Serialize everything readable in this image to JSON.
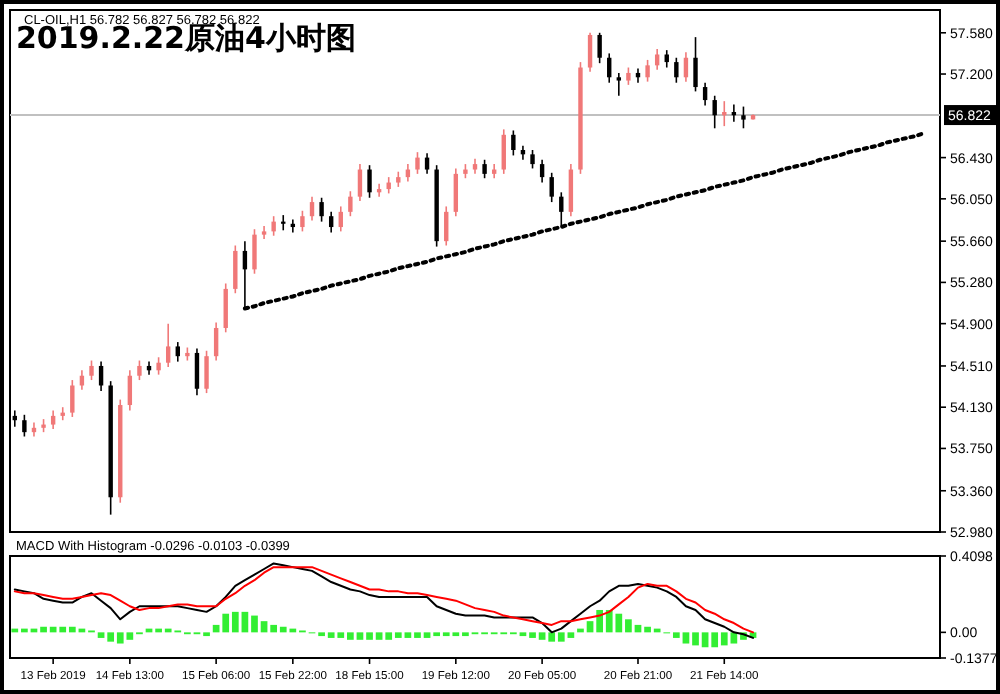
{
  "chart_data": [
    {
      "type": "candlestick",
      "title": "2019.2.22原油4小时图",
      "annotations": [
        "CL-OIL,H1 56.782 56.827 56.782 56.822"
      ],
      "tick_labels": "y",
      "ylim": [
        52.98,
        57.79
      ],
      "yticks": [
        {
          "value": 57.58,
          "label": "57.580"
        },
        {
          "value": 57.2,
          "label": "57.200"
        },
        {
          "value": 56.43,
          "label": "56.430"
        },
        {
          "value": 56.05,
          "label": "56.050"
        },
        {
          "value": 55.66,
          "label": "55.660"
        },
        {
          "value": 55.28,
          "label": "55.280"
        },
        {
          "value": 54.9,
          "label": "54.900"
        },
        {
          "value": 54.51,
          "label": "54.510"
        },
        {
          "value": 54.13,
          "label": "54.130"
        },
        {
          "value": 53.75,
          "label": "53.750"
        },
        {
          "value": 53.36,
          "label": "53.360"
        },
        {
          "value": 52.98,
          "label": "52.980"
        }
      ],
      "ref_lines": [
        {
          "axis": "y",
          "value": 56.822,
          "label": "56.822",
          "color": "#c0c0c0"
        }
      ],
      "categories": [
        null,
        null,
        null,
        null,
        null,
        null,
        null,
        null,
        null,
        null,
        null,
        null,
        null,
        null,
        null,
        null,
        null,
        null,
        null,
        null,
        null,
        null,
        null,
        null,
        null,
        null,
        null,
        null,
        null,
        null,
        null,
        null,
        null,
        null,
        null,
        null,
        null,
        null,
        null,
        null,
        null,
        null,
        null,
        null,
        null,
        null,
        null,
        null,
        null,
        null,
        null,
        null,
        null,
        null,
        null,
        null,
        null,
        null,
        null,
        null,
        null,
        null,
        null,
        null,
        null,
        null,
        null,
        null,
        null,
        null,
        null,
        null,
        null,
        null,
        null,
        null,
        null,
        null,
        null,
        null,
        null,
        null,
        null,
        null,
        null,
        null,
        null,
        null,
        null,
        null,
        null,
        null,
        null,
        null,
        null,
        null,
        null
      ],
      "ohlc": [
        [
          54.05,
          54.1,
          53.95,
          54.01
        ],
        [
          54.01,
          54.06,
          53.86,
          53.9
        ],
        [
          53.9,
          53.99,
          53.86,
          53.94
        ],
        [
          53.94,
          54.02,
          53.9,
          53.97
        ],
        [
          53.97,
          54.1,
          53.93,
          54.05
        ],
        [
          54.05,
          54.13,
          54.01,
          54.08
        ],
        [
          54.08,
          54.38,
          54.04,
          54.33
        ],
        [
          54.33,
          54.47,
          54.29,
          54.42
        ],
        [
          54.42,
          54.56,
          54.38,
          54.51
        ],
        [
          54.51,
          54.55,
          54.28,
          54.33
        ],
        [
          54.33,
          54.37,
          53.14,
          53.3
        ],
        [
          53.3,
          54.2,
          53.25,
          54.15
        ],
        [
          54.15,
          54.47,
          54.1,
          54.42
        ],
        [
          54.42,
          54.56,
          54.38,
          54.51
        ],
        [
          54.51,
          54.55,
          54.43,
          54.47
        ],
        [
          54.47,
          54.59,
          54.43,
          54.54
        ],
        [
          54.54,
          54.9,
          54.5,
          54.69
        ],
        [
          54.69,
          54.73,
          54.55,
          54.6
        ],
        [
          54.6,
          54.68,
          54.56,
          54.63
        ],
        [
          54.63,
          54.67,
          54.24,
          54.3
        ],
        [
          54.3,
          54.65,
          54.26,
          54.6
        ],
        [
          54.6,
          54.91,
          54.56,
          54.86
        ],
        [
          54.86,
          55.27,
          54.82,
          55.22
        ],
        [
          55.22,
          55.62,
          55.18,
          55.57
        ],
        [
          55.57,
          55.66,
          55.04,
          55.4
        ],
        [
          55.4,
          55.77,
          55.36,
          55.72
        ],
        [
          55.72,
          55.8,
          55.68,
          55.75
        ],
        [
          55.75,
          55.89,
          55.71,
          55.84
        ],
        [
          55.84,
          55.9,
          55.76,
          55.82
        ],
        [
          55.82,
          55.86,
          55.74,
          55.79
        ],
        [
          55.79,
          55.94,
          55.75,
          55.89
        ],
        [
          55.89,
          56.07,
          55.85,
          56.02
        ],
        [
          56.02,
          56.06,
          55.84,
          55.89
        ],
        [
          55.89,
          55.93,
          55.74,
          55.79
        ],
        [
          55.79,
          55.98,
          55.75,
          55.93
        ],
        [
          55.93,
          56.12,
          55.89,
          56.07
        ],
        [
          56.07,
          56.37,
          56.03,
          56.32
        ],
        [
          56.32,
          56.36,
          56.06,
          56.11
        ],
        [
          56.11,
          56.19,
          56.07,
          56.14
        ],
        [
          56.14,
          56.25,
          56.1,
          56.2
        ],
        [
          56.2,
          56.3,
          56.16,
          56.25
        ],
        [
          56.25,
          56.37,
          56.21,
          56.32
        ],
        [
          56.32,
          56.48,
          56.28,
          56.43
        ],
        [
          56.43,
          56.47,
          56.28,
          56.32
        ],
        [
          56.32,
          56.36,
          55.61,
          55.66
        ],
        [
          55.66,
          55.98,
          55.62,
          55.93
        ],
        [
          55.93,
          56.33,
          55.89,
          56.28
        ],
        [
          56.28,
          56.37,
          56.24,
          56.32
        ],
        [
          56.32,
          56.42,
          56.28,
          56.37
        ],
        [
          56.37,
          56.41,
          56.24,
          56.28
        ],
        [
          56.28,
          56.37,
          56.24,
          56.32
        ],
        [
          56.32,
          56.69,
          56.28,
          56.64
        ],
        [
          56.64,
          56.68,
          56.45,
          56.5
        ],
        [
          56.5,
          56.54,
          56.41,
          56.46
        ],
        [
          56.46,
          56.5,
          56.33,
          56.37
        ],
        [
          56.37,
          56.41,
          56.2,
          56.25
        ],
        [
          56.25,
          56.29,
          56.02,
          56.07
        ],
        [
          56.07,
          56.11,
          55.8,
          55.93
        ],
        [
          55.93,
          56.37,
          55.89,
          56.32
        ],
        [
          56.32,
          57.31,
          56.28,
          57.26
        ],
        [
          57.26,
          57.58,
          57.22,
          57.56
        ],
        [
          57.56,
          57.58,
          57.3,
          57.35
        ],
        [
          57.35,
          57.39,
          57.12,
          57.17
        ],
        [
          57.17,
          57.21,
          57.0,
          57.14
        ],
        [
          57.14,
          57.26,
          57.1,
          57.21
        ],
        [
          57.21,
          57.25,
          57.12,
          57.17
        ],
        [
          57.17,
          57.33,
          57.13,
          57.28
        ],
        [
          57.28,
          57.43,
          57.24,
          57.38
        ],
        [
          57.38,
          57.42,
          57.26,
          57.31
        ],
        [
          57.31,
          57.35,
          57.12,
          57.17
        ],
        [
          57.17,
          57.4,
          57.13,
          57.35
        ],
        [
          57.35,
          57.54,
          57.04,
          57.08
        ],
        [
          57.08,
          57.12,
          56.91,
          56.96
        ],
        [
          56.96,
          57.0,
          56.7,
          56.82
        ],
        [
          56.82,
          56.95,
          56.72,
          56.85
        ],
        [
          56.85,
          56.92,
          56.76,
          56.82
        ],
        [
          56.82,
          56.9,
          56.7,
          56.78
        ],
        [
          56.782,
          56.827,
          56.782,
          56.822
        ],
        null,
        null,
        null,
        null,
        null,
        null,
        null,
        null,
        null,
        null,
        null,
        null,
        null,
        null,
        null,
        null,
        null,
        null,
        null
      ],
      "colors": [
        "#000000",
        "#000000",
        "#f07878",
        "#f07878",
        "#f07878",
        "#f07878",
        "#f07878",
        "#f07878",
        "#f07878",
        "#000000",
        "#000000",
        "#f07878",
        "#f07878",
        "#f07878",
        "#000000",
        "#f07878",
        "#f07878",
        "#000000",
        "#f07878",
        "#000000",
        "#f07878",
        "#f07878",
        "#f07878",
        "#f07878",
        "#000000",
        "#f07878",
        "#f07878",
        "#f07878",
        "#000000",
        "#000000",
        "#f07878",
        "#f07878",
        "#000000",
        "#000000",
        "#f07878",
        "#f07878",
        "#f07878",
        "#000000",
        "#f07878",
        "#f07878",
        "#f07878",
        "#f07878",
        "#f07878",
        "#000000",
        "#000000",
        "#f07878",
        "#f07878",
        "#f07878",
        "#f07878",
        "#000000",
        "#f07878",
        "#f07878",
        "#000000",
        "#000000",
        "#000000",
        "#000000",
        "#000000",
        "#000000",
        "#f07878",
        "#f07878",
        "#f07878",
        "#000000",
        "#000000",
        "#000000",
        "#f07878",
        "#000000",
        "#f07878",
        "#f07878",
        "#000000",
        "#000000",
        "#f07878",
        "#000000",
        "#000000",
        "#000000",
        "#f07878",
        "#000000",
        "#000000",
        "#f07878",
        null,
        null,
        null,
        null,
        null,
        null,
        null,
        null,
        null,
        null,
        null,
        null,
        null,
        null,
        null,
        null,
        null,
        null,
        null
      ],
      "series": [
        {
          "type": "line",
          "color": "#000000",
          "line_style": "dotted",
          "values": [
            null,
            null,
            null,
            null,
            null,
            null,
            null,
            null,
            null,
            null,
            null,
            null,
            null,
            null,
            null,
            null,
            null,
            null,
            null,
            null,
            null,
            null,
            null,
            null,
            55.04,
            55.06,
            55.09,
            55.11,
            55.13,
            55.15,
            55.18,
            55.2,
            55.22,
            55.25,
            55.27,
            55.29,
            55.31,
            55.34,
            55.36,
            55.38,
            55.41,
            55.43,
            55.45,
            55.47,
            55.5,
            55.52,
            55.54,
            55.56,
            55.59,
            55.61,
            55.63,
            55.66,
            55.68,
            55.7,
            55.72,
            55.75,
            55.77,
            55.79,
            55.82,
            55.84,
            55.86,
            55.88,
            55.91,
            55.93,
            55.95,
            55.97,
            56.0,
            56.02,
            56.04,
            56.07,
            56.09,
            56.11,
            56.13,
            56.16,
            56.18,
            56.2,
            56.22,
            56.25,
            56.27,
            56.29,
            56.32,
            56.34,
            56.36,
            56.38,
            56.41,
            56.43,
            56.45,
            56.48,
            56.5,
            56.52,
            56.54,
            56.57,
            56.59,
            56.61,
            56.63,
            56.66,
            null
          ]
        }
      ]
    },
    {
      "type": "line",
      "title": "MACD With Histogram -0.0296 -0.0103 -0.0399",
      "ylim": [
        -0.1377,
        0.4098
      ],
      "yticks": [
        {
          "value": 0.4098,
          "label": "0.4098"
        },
        {
          "value": 0,
          "label": "0.00"
        },
        {
          "value": -0.1377,
          "label": "-0.1377"
        }
      ],
      "categories": [
        null,
        null,
        null,
        null,
        "13 Feb 2019",
        null,
        null,
        null,
        null,
        null,
        null,
        null,
        "14 Feb 13:00",
        null,
        null,
        null,
        null,
        null,
        null,
        null,
        null,
        "15 Feb 06:00",
        null,
        null,
        null,
        null,
        null,
        null,
        null,
        "15 Feb 22:00",
        null,
        null,
        null,
        null,
        null,
        null,
        null,
        "18 Feb 15:00",
        null,
        null,
        null,
        null,
        null,
        null,
        null,
        null,
        "19 Feb 12:00",
        null,
        null,
        null,
        null,
        null,
        null,
        null,
        null,
        "20 Feb 05:00",
        null,
        null,
        null,
        null,
        null,
        null,
        null,
        null,
        null,
        "20 Feb 21:00",
        null,
        null,
        null,
        null,
        null,
        null,
        null,
        null,
        "21 Feb 14:00",
        null,
        null,
        null,
        null,
        null,
        null,
        null,
        null,
        null,
        null,
        null,
        null,
        null,
        null,
        null,
        null,
        null,
        null,
        null,
        null,
        null,
        null
      ],
      "series": [
        {
          "type": "bar",
          "color": "#33ee33",
          "values": [
            0.02,
            0.02,
            0.02,
            0.03,
            0.03,
            0.03,
            0.03,
            0.02,
            0.01,
            -0.03,
            -0.05,
            -0.06,
            -0.04,
            -0.01,
            0.02,
            0.02,
            0.02,
            0.01,
            -0.01,
            -0.01,
            -0.02,
            0.04,
            0.1,
            0.11,
            0.11,
            0.09,
            0.06,
            0.04,
            0.03,
            0.02,
            0.01,
            0.0,
            -0.02,
            -0.03,
            -0.03,
            -0.04,
            -0.04,
            -0.04,
            -0.04,
            -0.04,
            -0.03,
            -0.03,
            -0.03,
            -0.03,
            -0.02,
            -0.02,
            -0.02,
            -0.02,
            -0.01,
            -0.01,
            -0.01,
            -0.01,
            -0.01,
            -0.02,
            -0.03,
            -0.04,
            -0.05,
            -0.05,
            -0.03,
            0.02,
            0.06,
            0.12,
            0.12,
            0.1,
            0.07,
            0.04,
            0.03,
            0.02,
            0.0,
            -0.03,
            -0.06,
            -0.07,
            -0.08,
            -0.08,
            -0.07,
            -0.06,
            -0.04,
            -0.03,
            null,
            null,
            null,
            null,
            null,
            null,
            null,
            null,
            null,
            null,
            null,
            null,
            null,
            null,
            null,
            null,
            null,
            null,
            null
          ]
        },
        {
          "type": "line",
          "color": "#000000",
          "values": [
            0.23,
            0.22,
            0.21,
            0.18,
            0.17,
            0.16,
            0.16,
            0.19,
            0.21,
            0.17,
            0.13,
            0.07,
            0.11,
            0.14,
            0.14,
            0.14,
            0.14,
            0.14,
            0.13,
            0.12,
            0.11,
            0.14,
            0.19,
            0.25,
            0.28,
            0.31,
            0.34,
            0.37,
            0.36,
            0.35,
            0.34,
            0.33,
            0.3,
            0.27,
            0.25,
            0.23,
            0.22,
            0.2,
            0.19,
            0.19,
            0.19,
            0.19,
            0.19,
            0.19,
            0.14,
            0.12,
            0.1,
            0.09,
            0.09,
            0.09,
            0.08,
            0.08,
            0.08,
            0.08,
            0.08,
            0.05,
            0.0,
            0.02,
            0.06,
            0.1,
            0.14,
            0.17,
            0.22,
            0.25,
            0.25,
            0.26,
            0.25,
            0.24,
            0.22,
            0.19,
            0.14,
            0.12,
            0.07,
            0.05,
            0.03,
            0.0,
            -0.01,
            -0.03,
            null,
            null,
            null,
            null,
            null,
            null,
            null,
            null,
            null,
            null,
            null,
            null,
            null,
            null,
            null,
            null,
            null,
            null,
            null
          ]
        },
        {
          "type": "line",
          "color": "#ff0000",
          "values": [
            0.22,
            0.21,
            0.21,
            0.2,
            0.19,
            0.18,
            0.18,
            0.19,
            0.2,
            0.21,
            0.2,
            0.17,
            0.14,
            0.12,
            0.13,
            0.13,
            0.14,
            0.15,
            0.15,
            0.14,
            0.14,
            0.14,
            0.18,
            0.21,
            0.25,
            0.28,
            0.32,
            0.35,
            0.35,
            0.35,
            0.35,
            0.35,
            0.33,
            0.31,
            0.29,
            0.27,
            0.25,
            0.23,
            0.23,
            0.22,
            0.22,
            0.21,
            0.21,
            0.2,
            0.19,
            0.18,
            0.17,
            0.15,
            0.13,
            0.12,
            0.11,
            0.09,
            0.08,
            0.07,
            0.06,
            0.05,
            0.04,
            0.06,
            0.06,
            0.07,
            0.08,
            0.09,
            0.11,
            0.15,
            0.19,
            0.24,
            0.26,
            0.25,
            0.25,
            0.22,
            0.18,
            0.16,
            0.12,
            0.1,
            0.07,
            0.05,
            0.02,
            0.0,
            null,
            null,
            null,
            null,
            null,
            null,
            null,
            null,
            null,
            null,
            null,
            null,
            null,
            null,
            null,
            null,
            null,
            null,
            null
          ]
        }
      ]
    }
  ]
}
